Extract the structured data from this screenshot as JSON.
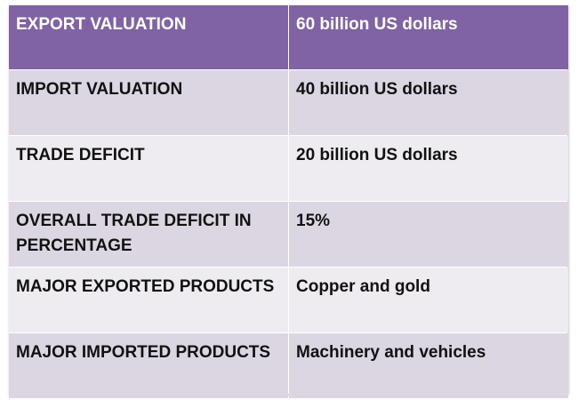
{
  "table": {
    "header": {
      "label": "EXPORT VALUATION",
      "value": "60 billion US dollars"
    },
    "rows": [
      {
        "label": "IMPORT VALUATION",
        "value": "40 billion US dollars"
      },
      {
        "label": "TRADE DEFICIT",
        "value": "20 billion US dollars"
      },
      {
        "label": "OVERALL TRADE DEFICIT IN PERCENTAGE",
        "value": "15%"
      },
      {
        "label": "MAJOR EXPORTED PRODUCTS",
        "value": "Copper and gold"
      },
      {
        "label": "MAJOR IMPORTED PRODUCTS",
        "value": "Machinery and vehicles"
      }
    ]
  },
  "colors": {
    "header_bg": "#7f63a5",
    "header_text": "#ffffff",
    "row_odd_bg": "#dcd6e3",
    "row_even_bg": "#eeebf1",
    "text": "#111111"
  }
}
